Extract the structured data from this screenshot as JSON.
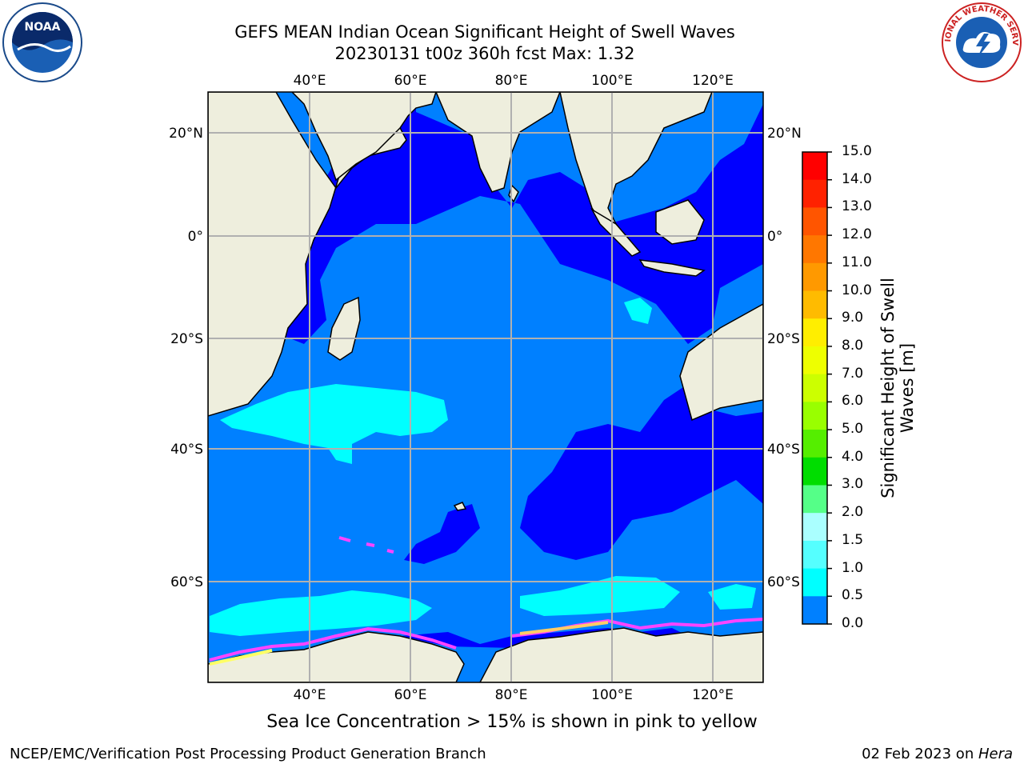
{
  "title": {
    "line1": "GEFS MEAN Indian Ocean Significant Height of Swell Waves",
    "line2": "20230131 t00z 360h fcst   Max: 1.32"
  },
  "map": {
    "lon_labels": [
      "40°E",
      "60°E",
      "80°E",
      "100°E",
      "120°E"
    ],
    "lat_labels": [
      "20°N",
      "0°",
      "20°S",
      "40°S",
      "60°S"
    ],
    "colors": {
      "land": "#eeeedd",
      "band_0_0_5": "#0000ff",
      "band_0_5_1_0": "#0080ff",
      "band_1_0_1_5": "#00ffff",
      "grid": "#b0b0b0",
      "sea_ice": "#ff44ff"
    }
  },
  "colorbar": {
    "title_line1": "Significant Height of Swell",
    "title_line2": "Waves [m]",
    "ticks": [
      "15.0",
      "14.0",
      "13.0",
      "12.0",
      "11.0",
      "10.0",
      "9.0",
      "8.0",
      "7.0",
      "6.0",
      "5.0",
      "4.0",
      "3.0",
      "2.0",
      "1.5",
      "1.0",
      "0.5",
      "0.0"
    ],
    "colors": [
      "#ff0000",
      "#ff2200",
      "#ff5500",
      "#ff7700",
      "#ff9900",
      "#ffbb00",
      "#ffee00",
      "#eeff00",
      "#ccff00",
      "#99ff00",
      "#55ee00",
      "#00dd00",
      "#55ff88",
      "#aaffff",
      "#55ffff",
      "#00ffff",
      "#0080ff",
      "#0000ff"
    ]
  },
  "note": "Sea Ice Concentration > 15% is shown in pink to yellow",
  "footer": {
    "left": "NCEP/EMC/Verification Post Processing Product Generation Branch",
    "right_prefix": "02 Feb 2023 on ",
    "right_italic": "Hera"
  },
  "logos": {
    "noaa_text": "NOAA",
    "nws_text": "NATIONAL WEATHER SERVICE"
  }
}
